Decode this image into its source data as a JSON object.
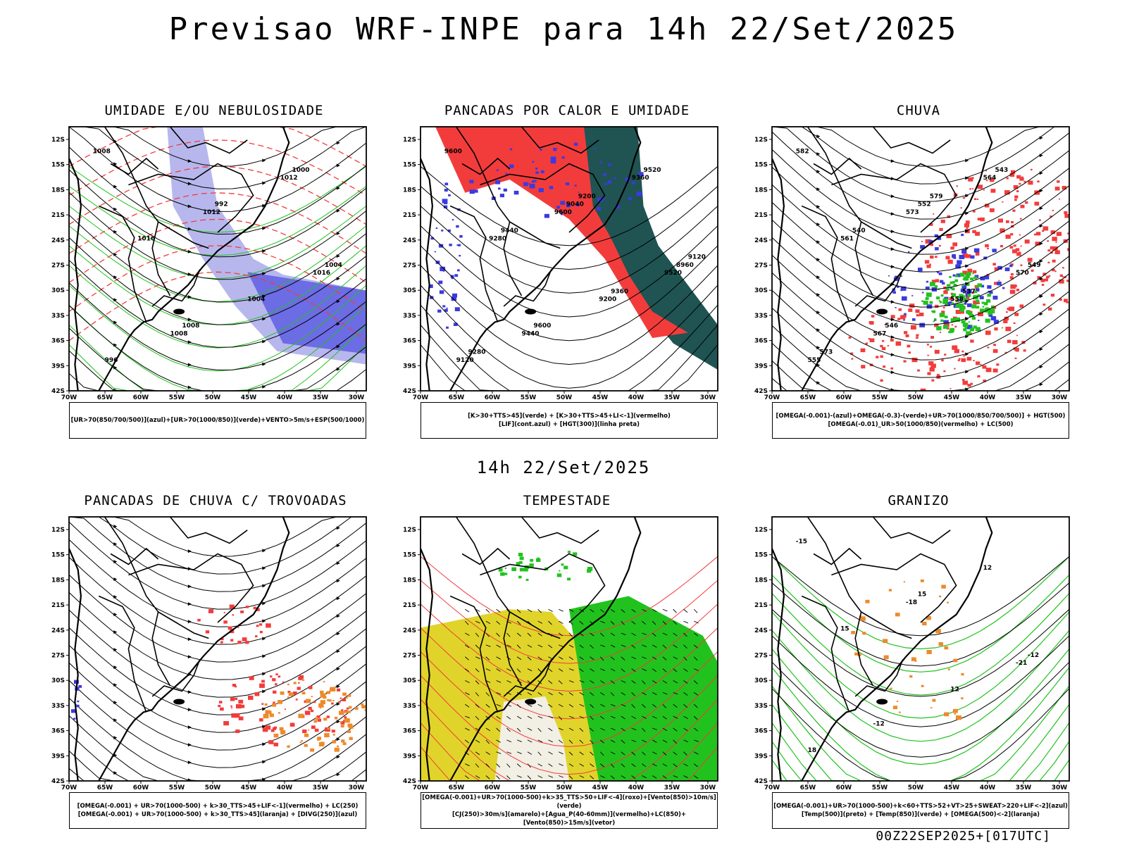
{
  "title": "Previsao WRF-INPE  para 14h 22/Set/2025",
  "subtitle": "14h 22/Set/2025",
  "footer": "00Z22SEP2025+[017UTC]",
  "lat_labels": [
    "12S",
    "15S",
    "18S",
    "21S",
    "24S",
    "27S",
    "30S",
    "33S",
    "36S",
    "39S",
    "42S"
  ],
  "lon_labels": [
    "70W",
    "65W",
    "60W",
    "55W",
    "50W",
    "45W",
    "40W",
    "35W",
    "30W"
  ],
  "colors": {
    "red": "#f23c3c",
    "green": "#22c21e",
    "blue": "#3a3ae0",
    "lightblue": "#9f9fe8",
    "darkteal": "#1f5452",
    "yellow": "#e0d42a",
    "orange": "#ee8a2a"
  },
  "panels": [
    {
      "title": "UMIDADE E/OU NEBULOSIDADE",
      "legend": [
        "[UR>70(850/700/500)](azul)+[UR>70(1000/850)](verde)+VENTO>5m/s+ESP(500/1000)"
      ],
      "labels": [
        "1008",
        "1012",
        "1016",
        "1008",
        "1012",
        "1016",
        "1004",
        "996",
        "992",
        "1004",
        "1008",
        "1000"
      ]
    },
    {
      "title": "PANCADAS POR CALOR E UMIDADE",
      "legend": [
        "[K>30+TTS>45](verde) + [K>30+TTS>45+LI<-1](vermelho)",
        "[LIF](cont.azul) + [HGT(300)](linha preta)"
      ],
      "labels": [
        "9600",
        "9600",
        "9520",
        "9440",
        "9360",
        "9280",
        "9200",
        "9120",
        "9040",
        "8960",
        "9600",
        "9520",
        "9440",
        "9360",
        "9280",
        "9200",
        "9120"
      ]
    },
    {
      "title": "CHUVA",
      "legend": [
        "[OMEGA(-0.001)-(azul)+OMEGA(-0.3)-(verde)+UR>70(1000/850/700/500)] + HGT(500)",
        "[OMEGA(-0.01)_UR>50(1000/850)(vermelho) + LC(500)"
      ],
      "labels": [
        "582",
        "573",
        "570",
        "567",
        "564",
        "561",
        "558",
        "555",
        "552",
        "549",
        "546",
        "543",
        "540",
        "537",
        "573",
        "579"
      ]
    },
    {
      "title": "PANCADAS DE CHUVA C/ TROVOADAS",
      "legend": [
        "[OMEGA(-0.001) + UR>70(1000-500) + k>30_TTS>45+LIF<-1](vermelho) + LC(250)",
        "[OMEGA(-0.001) + UR>70(1000-500) + k>30_TTS>45](laranja) + [DIVG(250)](azul)"
      ],
      "labels": []
    },
    {
      "title": "TEMPESTADE",
      "legend": [
        "[OMEGA(-0.001)+UR>70(1000-500)+k>35_TTS>50+LIF<-4](roxo)+[Vento(850)>10m/s](verde)",
        "[CJ(250)>30m/s](amarelo)+[Agua_P(40-60mm)](vermelho)+LC(850)+[Vento(850)>15m/s](vetor)"
      ],
      "labels": []
    },
    {
      "title": "GRANIZO",
      "legend": [
        "[OMEGA(-0.001)+UR>70(1000-500)+k<60+TTS>52+VT>25+SWEAT>220+LIF<-2](azul)",
        "[Temp(500)](preto) + [Temp(850)](verde) + [OMEGA(500)<-2](laranja)"
      ],
      "labels": [
        "-15",
        "-18",
        "-21",
        "-12",
        "12",
        "15",
        "12",
        "18",
        "15",
        "-12"
      ]
    }
  ]
}
